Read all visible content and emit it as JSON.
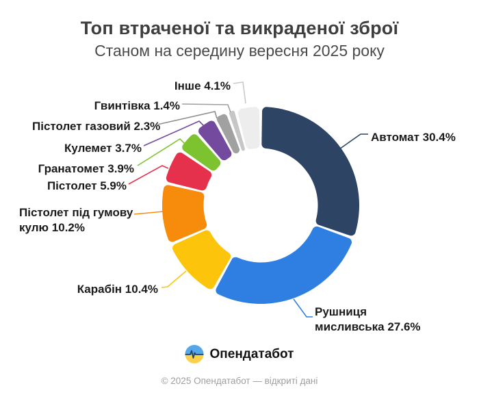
{
  "header": {
    "title": "Топ втраченої та викраденої зброї",
    "subtitle": "Станом на середину вересня 2025 року"
  },
  "chart_data": {
    "type": "pie",
    "variant": "donut",
    "title": "Топ втраченої та викраденої зброї",
    "subtitle": "Станом на середину вересня 2025 року",
    "unit": "%",
    "legend_position": "callout-labels-around-donut",
    "start_angle_deg": 0,
    "direction": "clockwise",
    "inner_radius_ratio": 0.58,
    "segments": [
      {
        "label": "Автомат",
        "value": 30.4,
        "display": "Автомат 30.4%",
        "color": "#2E4465"
      },
      {
        "label": "Рушниця мисливська",
        "value": 27.6,
        "display": "Рушниця мисливська 27.6%",
        "color": "#2E7FE1"
      },
      {
        "label": "Карабін",
        "value": 10.4,
        "display": "Карабін 10.4%",
        "color": "#FCC40A"
      },
      {
        "label": "Пістолет під гумову кулю",
        "value": 10.2,
        "display": "Пістолет під гумову кулю 10.2%",
        "color": "#F78B0C"
      },
      {
        "label": "Пістолет",
        "value": 5.9,
        "display": "Пістолет 5.9%",
        "color": "#E6314D"
      },
      {
        "label": "Гранатомет",
        "value": 3.9,
        "display": "Гранатомет 3.9%",
        "color": "#7DC32F"
      },
      {
        "label": "Кулемет",
        "value": 3.7,
        "display": "Кулемет 3.7%",
        "color": "#744A9E"
      },
      {
        "label": "Пістолет газовий",
        "value": 2.3,
        "display": "Пістолет газовий 2.3%",
        "color": "#A1A1A1",
        "line_color": "#8F8F8F"
      },
      {
        "label": "Гвинтівка",
        "value": 1.4,
        "display": "Гвинтівка 1.4%",
        "color": "#C6C6C6",
        "line_color": "#9E9E9E"
      },
      {
        "label": "Інше",
        "value": 4.1,
        "display": "Інше 4.1%",
        "color": "#EDEDED",
        "line_color": "#C9C9C9"
      }
    ]
  },
  "branding": {
    "logo_text": "Опендатабот",
    "logo_icon": "pulse-in-circle-icon",
    "logo_blue": "#56A7EA",
    "logo_yellow": "#FBD14B",
    "logo_line": "#25456A"
  },
  "footer": {
    "text": "© 2025 Опендатабот — відкриті дані"
  }
}
